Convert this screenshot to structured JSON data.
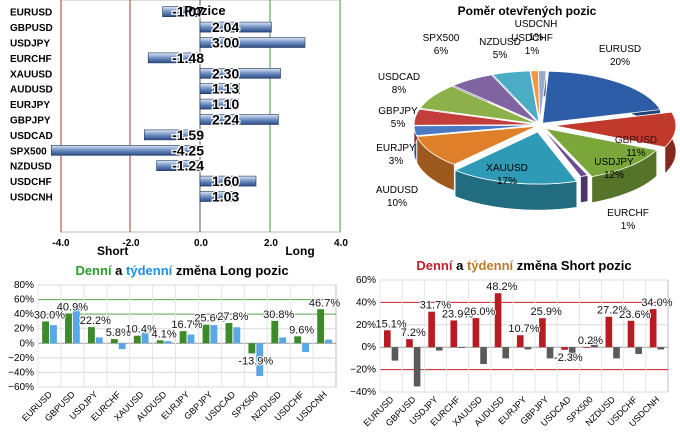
{
  "chart_data": [
    {
      "type": "bar",
      "orientation": "horizontal",
      "title": "Pozice",
      "categories": [
        "EURUSD",
        "GBPUSD",
        "USDJPY",
        "EURCHF",
        "XAUUSD",
        "AUDUSD",
        "EURJPY",
        "GBPJPY",
        "USDCAD",
        "SPX500",
        "NZDUSD",
        "USDCHF",
        "USDCNH"
      ],
      "values": [
        -1.07,
        2.04,
        3.0,
        -1.48,
        2.3,
        1.13,
        1.1,
        2.24,
        -1.59,
        -4.25,
        -1.24,
        1.6,
        1.03
      ],
      "value_labels": [
        "-1.07",
        "2.04",
        "3.00",
        "-1.48",
        "2.30",
        "1.13",
        "1.10",
        "2.24",
        "-1.59",
        "-4.25",
        "-1.24",
        "1.60",
        "1.03"
      ],
      "xlim": [
        -4.0,
        4.0
      ],
      "xticks": [
        "-4.0",
        "-2.0",
        "0.0",
        "2.0",
        "4.0"
      ],
      "short_label": "Short",
      "long_label": "Long"
    },
    {
      "type": "pie",
      "title": "Poměr  otevřených pozic",
      "labels": [
        "EURUSD",
        "GBPUSD",
        "USDJPY",
        "EURCHF",
        "XAUUSD",
        "AUDUSD",
        "EURJPY",
        "GBPJPY",
        "USDCAD",
        "SPX500",
        "NZDUSD",
        "USDCHF",
        "USDCNH"
      ],
      "values": [
        20,
        11,
        12,
        1,
        17,
        10,
        3,
        5,
        8,
        6,
        5,
        1,
        1
      ],
      "value_labels": [
        "20%",
        "11%",
        "12%",
        "1%",
        "17%",
        "10%",
        "3%",
        "5%",
        "8%",
        "6%",
        "5%",
        "1%",
        "1%"
      ],
      "colors": [
        "#2e5da8",
        "#c0392b",
        "#7aa63a",
        "#6d4a94",
        "#2f9ab6",
        "#e07f2a",
        "#4a78c4",
        "#c23e3a",
        "#8cb14a",
        "#8064a2",
        "#4bacc6",
        "#f79646",
        "#9aa9d0"
      ]
    },
    {
      "type": "bar",
      "title_parts": [
        "Denní",
        " a ",
        "týdenní",
        " změna Long pozic"
      ],
      "title_colors": [
        "#2a9d2a",
        "#000000",
        "#1e90e8",
        "#000000"
      ],
      "categories": [
        "EURUSD",
        "GBPUSD",
        "USDJPY",
        "EURCHF",
        "XAUUSD",
        "AUDUSD",
        "EURJPY",
        "GBPJPY",
        "USDCAD",
        "SPX500",
        "NZDUSD",
        "USDCHF",
        "USDCNH"
      ],
      "series": [
        {
          "values": [
            30.0,
            40.9,
            22.2,
            5.8,
            10.4,
            4.1,
            16.7,
            25.6,
            27.8,
            -13.9,
            30.8,
            9.6,
            46.7
          ],
          "color": "#3d8a2a"
        },
        {
          "values": [
            25.0,
            55.0,
            8.0,
            -8.0,
            15.0,
            3.0,
            12.0,
            25.0,
            22.0,
            -45.0,
            8.0,
            -12.0,
            5.0
          ],
          "color": "#5aa7e8"
        }
      ],
      "data_labels": [
        "30.0%",
        "40.9%",
        "22.2%",
        "5.8%",
        "10.4%",
        "4.1%",
        "16.7%",
        "25.6%",
        "27.8%",
        "-13.9%",
        "30.8%",
        "9.6%",
        "46.7%"
      ],
      "ylim": [
        -60,
        80
      ],
      "yticks": [
        "80%",
        "60%",
        "40%",
        "20%",
        "0%",
        "−20%",
        "−40%",
        "−60%"
      ]
    },
    {
      "type": "bar",
      "title_parts": [
        "Denní",
        " a ",
        "týdenní",
        " změna Short pozic"
      ],
      "title_colors": [
        "#c0202a",
        "#000000",
        "#c07a2a",
        "#000000"
      ],
      "categories": [
        "EURUSD",
        "GBPUSD",
        "USDJPY",
        "EURCHF",
        "XAUUSD",
        "AUDUSD",
        "EURJPY",
        "GBPJPY",
        "USDCAD",
        "SPX500",
        "NZDUSD",
        "USDCHF",
        "USDCNH"
      ],
      "series": [
        {
          "values": [
            15.1,
            7.2,
            31.7,
            23.9,
            26.0,
            48.2,
            10.7,
            25.9,
            -2.3,
            0.2,
            27.2,
            23.6,
            34.0
          ],
          "color": "#b81c22"
        },
        {
          "values": [
            -12.0,
            -35.0,
            -3.0,
            0.0,
            -15.0,
            -10.0,
            -2.0,
            -10.0,
            -12.0,
            8.0,
            -10.0,
            -6.0,
            -2.0
          ],
          "color": "#5a5a5a"
        }
      ],
      "data_labels": [
        "15.1%",
        "7.2%",
        "31.7%",
        "23.9%",
        "26.0%",
        "48.2%",
        "10.7%",
        "25.9%",
        "-2.3%",
        "0.2%",
        "27.2%",
        "23.6%",
        "34.0%"
      ],
      "ylim": [
        -40,
        60
      ],
      "yticks": [
        "60%",
        "40%",
        "20%",
        "0%",
        "−20%",
        "−40%"
      ]
    }
  ]
}
